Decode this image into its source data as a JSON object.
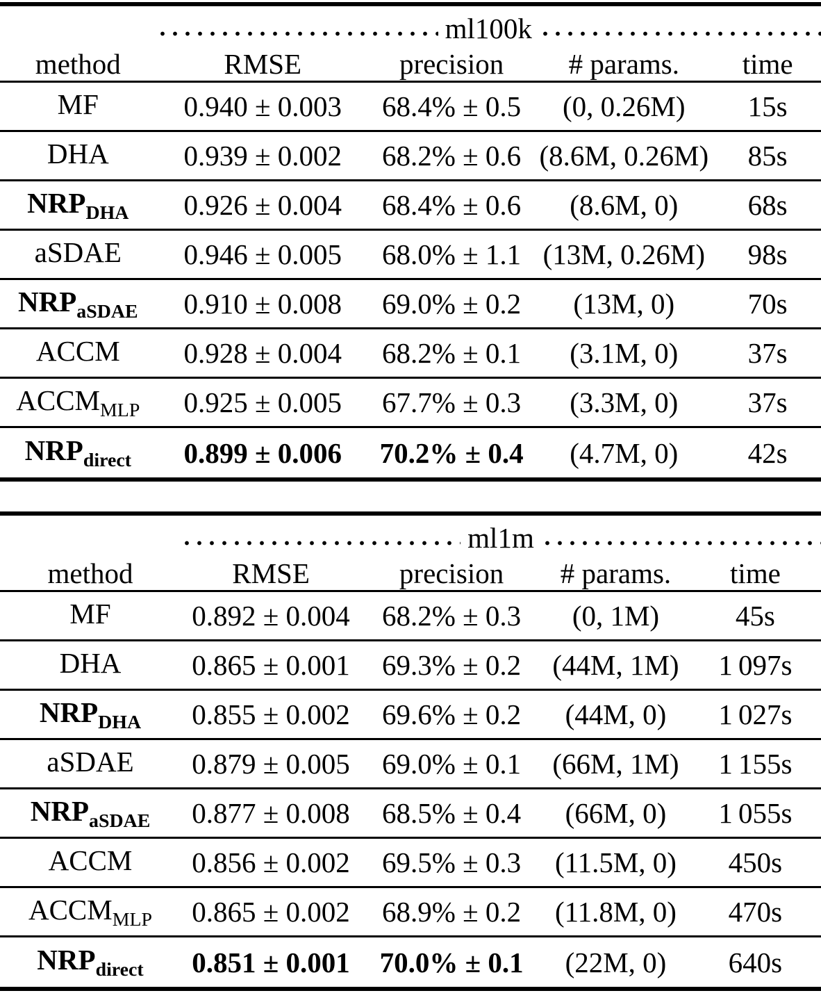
{
  "colors": {
    "text": "#000000",
    "background": "#ffffff"
  },
  "tables": [
    {
      "dataset": "ml100k",
      "columns": [
        "method",
        "RMSE",
        "precision",
        "# params.",
        "time"
      ],
      "rows": [
        {
          "method": "MF",
          "sub": "",
          "bold_method": false,
          "bold_metrics": false,
          "rmse": "0.940 ± 0.003",
          "precision": "68.4% ± 0.5",
          "params": "(0, 0.26M)",
          "time": "15s"
        },
        {
          "method": "DHA",
          "sub": "",
          "bold_method": false,
          "bold_metrics": false,
          "rmse": "0.939 ± 0.002",
          "precision": "68.2% ± 0.6",
          "params": "(8.6M, 0.26M)",
          "time": "85s"
        },
        {
          "method": "NRP",
          "sub": "DHA",
          "bold_method": true,
          "bold_metrics": false,
          "rmse": "0.926 ± 0.004",
          "precision": "68.4% ± 0.6",
          "params": "(8.6M, 0)",
          "time": "68s"
        },
        {
          "method": "aSDAE",
          "sub": "",
          "bold_method": false,
          "bold_metrics": false,
          "rmse": "0.946 ± 0.005",
          "precision": "68.0% ± 1.1",
          "params": "(13M, 0.26M)",
          "time": "98s"
        },
        {
          "method": "NRP",
          "sub": "aSDAE",
          "bold_method": true,
          "bold_metrics": false,
          "rmse": "0.910 ± 0.008",
          "precision": "69.0% ± 0.2",
          "params": "(13M, 0)",
          "time": "70s"
        },
        {
          "method": "ACCM",
          "sub": "",
          "bold_method": false,
          "bold_metrics": false,
          "rmse": "0.928 ± 0.004",
          "precision": "68.2% ± 0.1",
          "params": "(3.1M, 0)",
          "time": "37s"
        },
        {
          "method": "ACCM",
          "sub": "MLP",
          "bold_method": false,
          "bold_metrics": false,
          "rmse": "0.925 ± 0.005",
          "precision": "67.7% ± 0.3",
          "params": "(3.3M, 0)",
          "time": "37s"
        },
        {
          "method": "NRP",
          "sub": "direct",
          "bold_method": true,
          "bold_metrics": true,
          "rmse": "0.899 ± 0.006",
          "precision": "70.2% ± 0.4",
          "params": "(4.7M, 0)",
          "time": "42s"
        }
      ]
    },
    {
      "dataset": "ml1m",
      "columns": [
        "method",
        "RMSE",
        "precision",
        "# params.",
        "time"
      ],
      "rows": [
        {
          "method": "MF",
          "sub": "",
          "bold_method": false,
          "bold_metrics": false,
          "rmse": "0.892 ± 0.004",
          "precision": "68.2% ± 0.3",
          "params": "(0, 1M)",
          "time": "45s"
        },
        {
          "method": "DHA",
          "sub": "",
          "bold_method": false,
          "bold_metrics": false,
          "rmse": "0.865 ± 0.001",
          "precision": "69.3% ± 0.2",
          "params": "(44M, 1M)",
          "time": "1 097s"
        },
        {
          "method": "NRP",
          "sub": "DHA",
          "bold_method": true,
          "bold_metrics": false,
          "rmse": "0.855 ± 0.002",
          "precision": "69.6% ± 0.2",
          "params": "(44M, 0)",
          "time": "1 027s"
        },
        {
          "method": "aSDAE",
          "sub": "",
          "bold_method": false,
          "bold_metrics": false,
          "rmse": "0.879 ± 0.005",
          "precision": "69.0% ± 0.1",
          "params": "(66M, 1M)",
          "time": "1 155s"
        },
        {
          "method": "NRP",
          "sub": "aSDAE",
          "bold_method": true,
          "bold_metrics": false,
          "rmse": "0.877 ± 0.008",
          "precision": "68.5% ± 0.4",
          "params": "(66M, 0)",
          "time": "1 055s"
        },
        {
          "method": "ACCM",
          "sub": "",
          "bold_method": false,
          "bold_metrics": false,
          "rmse": "0.856 ± 0.002",
          "precision": "69.5% ± 0.3",
          "params": "(11.5M, 0)",
          "time": "450s"
        },
        {
          "method": "ACCM",
          "sub": "MLP",
          "bold_method": false,
          "bold_metrics": false,
          "rmse": "0.865 ± 0.002",
          "precision": "68.9% ± 0.2",
          "params": "(11.8M, 0)",
          "time": "470s"
        },
        {
          "method": "NRP",
          "sub": "direct",
          "bold_method": true,
          "bold_metrics": true,
          "rmse": "0.851 ± 0.001",
          "precision": "70.0% ± 0.1",
          "params": "(22M, 0)",
          "time": "640s"
        }
      ]
    }
  ]
}
